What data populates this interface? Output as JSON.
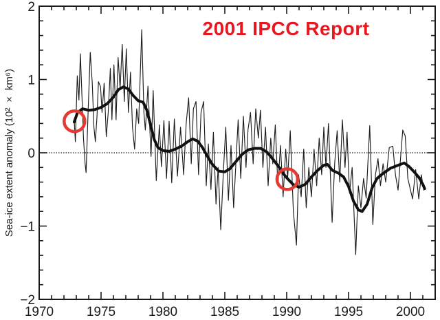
{
  "colors": {
    "title_red": "#e8161f",
    "circle_red": "#e53a34",
    "line_black": "#1c1c1c",
    "smooth_black": "#111111",
    "axis_black": "#1a1a1a"
  },
  "annotation_title": "2001 IPCC Report",
  "chart_data": {
    "type": "line",
    "title": "2001 IPCC Report",
    "xlabel": "",
    "ylabel": "Sea-ice extent anomaly (10² × km⁶)",
    "xlim": [
      1970,
      2002
    ],
    "ylim": [
      -2,
      2
    ],
    "grid": false,
    "zero_reference_line": {
      "y": 0,
      "style": "dotted"
    },
    "x_major_ticks": [
      1970,
      1975,
      1980,
      1985,
      1990,
      1995,
      2000
    ],
    "x_tick_labels": [
      "1970",
      "1975",
      "1980",
      "1985",
      "1990",
      "1995",
      "2000"
    ],
    "x_minor_step": 1,
    "y_major_ticks": [
      2,
      1,
      0,
      -1,
      -2
    ],
    "y_tick_labels": [
      "2",
      "1",
      "0",
      "−1",
      "−2"
    ],
    "y_minor_step": 0.2,
    "legend": "none",
    "series": [
      {
        "name": "monthly sea-ice extent anomaly",
        "style": "thin",
        "points": [
          [
            1972.83,
            0.45
          ],
          [
            1972.92,
            0.15
          ],
          [
            1973.08,
            1.05
          ],
          [
            1973.21,
            0.72
          ],
          [
            1973.33,
            1.35
          ],
          [
            1973.46,
            0.75
          ],
          [
            1973.58,
            0.2
          ],
          [
            1973.71,
            -0.15
          ],
          [
            1973.79,
            -0.27
          ],
          [
            1973.96,
            0.6
          ],
          [
            1974.13,
            1.37
          ],
          [
            1974.29,
            0.95
          ],
          [
            1974.42,
            0.35
          ],
          [
            1974.54,
            0.15
          ],
          [
            1974.67,
            0.5
          ],
          [
            1974.79,
            0.97
          ],
          [
            1974.96,
            0.9
          ],
          [
            1975.08,
            0.55
          ],
          [
            1975.25,
            0.95
          ],
          [
            1975.42,
            0.22
          ],
          [
            1975.58,
            0.55
          ],
          [
            1975.75,
            1.15
          ],
          [
            1975.88,
            0.45
          ],
          [
            1976.04,
            1.2
          ],
          [
            1976.21,
            0.45
          ],
          [
            1976.38,
            1.3
          ],
          [
            1976.54,
            0.88
          ],
          [
            1976.71,
            1.48
          ],
          [
            1976.88,
            0.7
          ],
          [
            1977.04,
            1.42
          ],
          [
            1977.21,
            0.55
          ],
          [
            1977.38,
            1.1
          ],
          [
            1977.54,
            0.35
          ],
          [
            1977.71,
            0.05
          ],
          [
            1977.88,
            0.6
          ],
          [
            1978.04,
            0.4
          ],
          [
            1978.17,
            1.1
          ],
          [
            1978.29,
            1.68
          ],
          [
            1978.46,
            0.55
          ],
          [
            1978.58,
            0.31
          ],
          [
            1978.79,
            0.91
          ],
          [
            1979.04,
            -0.05
          ],
          [
            1979.21,
            0.85
          ],
          [
            1979.46,
            -0.38
          ],
          [
            1979.71,
            0.38
          ],
          [
            1979.88,
            -0.19
          ],
          [
            1980.08,
            0.44
          ],
          [
            1980.29,
            -0.35
          ],
          [
            1980.5,
            0.43
          ],
          [
            1980.71,
            -0.41
          ],
          [
            1980.92,
            0.46
          ],
          [
            1981.17,
            -0.32
          ],
          [
            1981.42,
            0.35
          ],
          [
            1981.67,
            -0.3
          ],
          [
            1981.88,
            0.4
          ],
          [
            1982.08,
            0.75
          ],
          [
            1982.29,
            -0.15
          ],
          [
            1982.46,
            0.6
          ],
          [
            1982.67,
            0.7
          ],
          [
            1982.88,
            -0.3
          ],
          [
            1983.08,
            0.55
          ],
          [
            1983.29,
            0.7
          ],
          [
            1983.5,
            -0.45
          ],
          [
            1983.67,
            0.12
          ],
          [
            1983.88,
            -0.5
          ],
          [
            1984.08,
            0.28
          ],
          [
            1984.29,
            -0.7
          ],
          [
            1984.46,
            -0.2
          ],
          [
            1984.67,
            -1.05
          ],
          [
            1984.88,
            -0.28
          ],
          [
            1985.08,
            0.35
          ],
          [
            1985.29,
            -0.65
          ],
          [
            1985.5,
            0.1
          ],
          [
            1985.71,
            -0.75
          ],
          [
            1985.88,
            -0.2
          ],
          [
            1986.08,
            0.45
          ],
          [
            1986.29,
            -0.35
          ],
          [
            1986.5,
            0.5
          ],
          [
            1986.71,
            -0.2
          ],
          [
            1986.88,
            0.32
          ],
          [
            1987.08,
            0.55
          ],
          [
            1987.29,
            -0.15
          ],
          [
            1987.5,
            0.6
          ],
          [
            1987.71,
            0.2
          ],
          [
            1987.88,
            0.58
          ],
          [
            1988.08,
            -0.2
          ],
          [
            1988.29,
            0.35
          ],
          [
            1988.5,
            -0.45
          ],
          [
            1988.71,
            0.2
          ],
          [
            1988.88,
            -0.15
          ],
          [
            1989.08,
            0.38
          ],
          [
            1989.29,
            -0.45
          ],
          [
            1989.5,
            0.1
          ],
          [
            1989.71,
            -0.6
          ],
          [
            1989.92,
            0.05
          ],
          [
            1990.08,
            -0.35
          ],
          [
            1990.29,
            0.3
          ],
          [
            1990.54,
            -0.8
          ],
          [
            1990.79,
            -1.26
          ],
          [
            1990.96,
            -0.3
          ],
          [
            1991.17,
            -0.6
          ],
          [
            1991.38,
            0.05
          ],
          [
            1991.58,
            -0.75
          ],
          [
            1991.79,
            -0.2
          ],
          [
            1992.0,
            -0.6
          ],
          [
            1992.21,
            0.05
          ],
          [
            1992.42,
            -0.45
          ],
          [
            1992.63,
            0.2
          ],
          [
            1992.83,
            -0.3
          ],
          [
            1993.0,
            0.35
          ],
          [
            1993.17,
            -0.2
          ],
          [
            1993.38,
            0.4
          ],
          [
            1993.67,
            -0.95
          ],
          [
            1993.88,
            -0.15
          ],
          [
            1994.08,
            0.3
          ],
          [
            1994.29,
            -0.4
          ],
          [
            1994.5,
            0.45
          ],
          [
            1994.71,
            -0.2
          ],
          [
            1994.88,
            0.28
          ],
          [
            1995.08,
            -0.55
          ],
          [
            1995.29,
            -0.2
          ],
          [
            1995.58,
            -1.39
          ],
          [
            1995.79,
            -0.45
          ],
          [
            1996.0,
            -0.75
          ],
          [
            1996.21,
            -0.35
          ],
          [
            1996.42,
            -0.62
          ],
          [
            1996.71,
            0.37
          ],
          [
            1996.96,
            -0.98
          ],
          [
            1997.17,
            -0.3
          ],
          [
            1997.38,
            -0.08
          ],
          [
            1997.58,
            -0.45
          ],
          [
            1997.79,
            -0.15
          ],
          [
            1998.0,
            -0.4
          ],
          [
            1998.29,
            0.07
          ],
          [
            1998.58,
            0.09
          ],
          [
            1998.79,
            -0.3
          ],
          [
            1999.0,
            -0.51
          ],
          [
            1999.38,
            0.31
          ],
          [
            1999.58,
            0.23
          ],
          [
            1999.79,
            -0.35
          ],
          [
            2000.17,
            -0.63
          ],
          [
            2000.42,
            -0.23
          ],
          [
            2000.67,
            -0.63
          ],
          [
            2000.88,
            -0.3
          ],
          [
            2001.08,
            -0.51
          ]
        ]
      },
      {
        "name": "smoothed (filtered) sea-ice extent anomaly",
        "style": "thick",
        "points": [
          [
            1972.83,
            0.42
          ],
          [
            1973.1,
            0.55
          ],
          [
            1973.5,
            0.6
          ],
          [
            1974.0,
            0.58
          ],
          [
            1974.5,
            0.59
          ],
          [
            1975.0,
            0.62
          ],
          [
            1975.5,
            0.67
          ],
          [
            1976.0,
            0.76
          ],
          [
            1976.4,
            0.86
          ],
          [
            1976.8,
            0.9
          ],
          [
            1977.2,
            0.87
          ],
          [
            1977.6,
            0.78
          ],
          [
            1978.0,
            0.71
          ],
          [
            1978.4,
            0.69
          ],
          [
            1978.7,
            0.58
          ],
          [
            1979.0,
            0.38
          ],
          [
            1979.3,
            0.18
          ],
          [
            1979.6,
            0.07
          ],
          [
            1980.0,
            0.03
          ],
          [
            1980.5,
            0.02
          ],
          [
            1981.0,
            0.05
          ],
          [
            1981.5,
            0.09
          ],
          [
            1982.0,
            0.15
          ],
          [
            1982.4,
            0.19
          ],
          [
            1982.8,
            0.16
          ],
          [
            1983.2,
            0.07
          ],
          [
            1983.6,
            -0.05
          ],
          [
            1984.0,
            -0.16
          ],
          [
            1984.5,
            -0.25
          ],
          [
            1985.0,
            -0.26
          ],
          [
            1985.4,
            -0.22
          ],
          [
            1985.9,
            -0.12
          ],
          [
            1986.4,
            -0.02
          ],
          [
            1986.9,
            0.04
          ],
          [
            1987.4,
            0.06
          ],
          [
            1987.9,
            0.06
          ],
          [
            1988.4,
            0.01
          ],
          [
            1988.9,
            -0.09
          ],
          [
            1989.4,
            -0.2
          ],
          [
            1989.8,
            -0.3
          ],
          [
            1990.1,
            -0.36
          ],
          [
            1990.5,
            -0.43
          ],
          [
            1991.0,
            -0.47
          ],
          [
            1991.5,
            -0.43
          ],
          [
            1992.0,
            -0.33
          ],
          [
            1992.5,
            -0.24
          ],
          [
            1993.0,
            -0.17
          ],
          [
            1993.3,
            -0.16
          ],
          [
            1993.7,
            -0.24
          ],
          [
            1994.2,
            -0.28
          ],
          [
            1994.6,
            -0.33
          ],
          [
            1995.0,
            -0.46
          ],
          [
            1995.4,
            -0.66
          ],
          [
            1995.8,
            -0.78
          ],
          [
            1996.1,
            -0.8
          ],
          [
            1996.5,
            -0.7
          ],
          [
            1996.9,
            -0.48
          ],
          [
            1997.3,
            -0.35
          ],
          [
            1997.8,
            -0.28
          ],
          [
            1998.4,
            -0.21
          ],
          [
            1999.0,
            -0.17
          ],
          [
            1999.5,
            -0.14
          ],
          [
            1999.9,
            -0.19
          ],
          [
            2000.3,
            -0.26
          ],
          [
            2000.7,
            -0.34
          ],
          [
            2001.0,
            -0.43
          ],
          [
            2001.15,
            -0.49
          ]
        ]
      }
    ],
    "annotations": {
      "title_text": "2001 IPCC Report",
      "circles": [
        {
          "x": 1972.85,
          "y": 0.43,
          "label": "circled start point ~1973"
        },
        {
          "x": 1990.05,
          "y": -0.36,
          "label": "circled point ~1990"
        }
      ]
    }
  }
}
